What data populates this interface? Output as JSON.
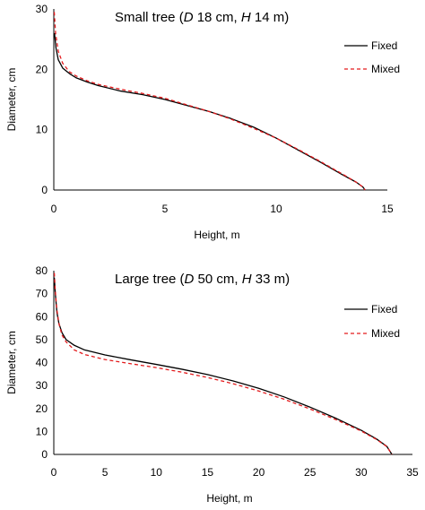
{
  "chart_data": [
    {
      "type": "line",
      "title_parts": [
        "Small tree (",
        "D",
        " 18 cm, ",
        "H",
        " 14 m)"
      ],
      "xlabel": "Height, m",
      "ylabel": "Diameter, cm",
      "xlim": [
        0,
        15
      ],
      "ylim": [
        0,
        30
      ],
      "xticks": [
        "0",
        "5",
        "10",
        "15"
      ],
      "yticks": [
        "0",
        "10",
        "20",
        "30"
      ],
      "grid": false,
      "legend_position": "right",
      "series": [
        {
          "name": "Fixed",
          "color": "#000000",
          "dash": "solid",
          "points": [
            [
              0.03,
              26
            ],
            [
              0.1,
              23.5
            ],
            [
              0.2,
              21.6
            ],
            [
              0.4,
              20.2
            ],
            [
              0.7,
              19.3
            ],
            [
              1,
              18.6
            ],
            [
              1.5,
              17.9
            ],
            [
              2,
              17.3
            ],
            [
              3,
              16.4
            ],
            [
              4,
              15.8
            ],
            [
              5,
              15.0
            ],
            [
              6,
              14.0
            ],
            [
              7,
              13.0
            ],
            [
              8,
              11.8
            ],
            [
              9,
              10.4
            ],
            [
              10,
              8.6
            ],
            [
              11,
              6.6
            ],
            [
              12,
              4.6
            ],
            [
              13,
              2.5
            ],
            [
              13.6,
              1.3
            ],
            [
              13.9,
              0.5
            ],
            [
              14.0,
              0
            ]
          ]
        },
        {
          "name": "Mixed",
          "color": "#e31a1c",
          "dash": "dashed",
          "points": [
            [
              0.02,
              29.5
            ],
            [
              0.08,
              26
            ],
            [
              0.2,
              23
            ],
            [
              0.4,
              21
            ],
            [
              0.7,
              19.6
            ],
            [
              1,
              18.9
            ],
            [
              1.5,
              18.1
            ],
            [
              2,
              17.5
            ],
            [
              3,
              16.7
            ],
            [
              4,
              16.0
            ],
            [
              5,
              15.2
            ],
            [
              6,
              14.1
            ],
            [
              7,
              13.0
            ],
            [
              8,
              11.7
            ],
            [
              9,
              10.2
            ],
            [
              10,
              8.6
            ],
            [
              11,
              6.7
            ],
            [
              12,
              4.7
            ],
            [
              13,
              2.6
            ],
            [
              13.6,
              1.3
            ],
            [
              13.9,
              0.5
            ],
            [
              14.0,
              0
            ]
          ]
        }
      ]
    },
    {
      "type": "line",
      "title_parts": [
        "Large tree (",
        "D",
        " 50 cm, ",
        "H",
        " 33 m)"
      ],
      "xlabel": "Height, m",
      "ylabel": "Diameter, cm",
      "xlim": [
        0,
        35
      ],
      "ylim": [
        0,
        80
      ],
      "xticks": [
        "0",
        "5",
        "10",
        "15",
        "20",
        "25",
        "30",
        "35"
      ],
      "yticks": [
        "0",
        "10",
        "20",
        "30",
        "40",
        "50",
        "60",
        "70",
        "80"
      ],
      "grid": false,
      "legend_position": "right",
      "series": [
        {
          "name": "Fixed",
          "color": "#000000",
          "dash": "solid",
          "points": [
            [
              0.05,
              77
            ],
            [
              0.15,
              70
            ],
            [
              0.3,
              62
            ],
            [
              0.5,
              57
            ],
            [
              0.8,
              53
            ],
            [
              1.2,
              50
            ],
            [
              2,
              47.5
            ],
            [
              3,
              45.5
            ],
            [
              5,
              43.3
            ],
            [
              7.5,
              41.2
            ],
            [
              10,
              39.2
            ],
            [
              12.5,
              37.1
            ],
            [
              15,
              34.8
            ],
            [
              17.5,
              32.0
            ],
            [
              20,
              28.8
            ],
            [
              22.5,
              25.0
            ],
            [
              25,
              20.6
            ],
            [
              27.5,
              15.8
            ],
            [
              30,
              10.5
            ],
            [
              31.5,
              6.7
            ],
            [
              32.5,
              3.5
            ],
            [
              33,
              0
            ]
          ]
        },
        {
          "name": "Mixed",
          "color": "#e31a1c",
          "dash": "dashed",
          "points": [
            [
              0.05,
              79
            ],
            [
              0.15,
              71
            ],
            [
              0.3,
              63
            ],
            [
              0.5,
              57
            ],
            [
              0.8,
              52
            ],
            [
              1.2,
              49
            ],
            [
              2,
              45.5
            ],
            [
              3,
              43.5
            ],
            [
              5,
              41.3
            ],
            [
              7.5,
              39.5
            ],
            [
              10,
              37.8
            ],
            [
              12.5,
              35.8
            ],
            [
              15,
              33.5
            ],
            [
              17.5,
              30.8
            ],
            [
              20,
              27.6
            ],
            [
              22.5,
              24.0
            ],
            [
              25,
              19.8
            ],
            [
              27.5,
              15.2
            ],
            [
              30,
              10.2
            ],
            [
              31.5,
              6.5
            ],
            [
              32.5,
              3.4
            ],
            [
              33,
              0
            ]
          ]
        }
      ]
    }
  ]
}
